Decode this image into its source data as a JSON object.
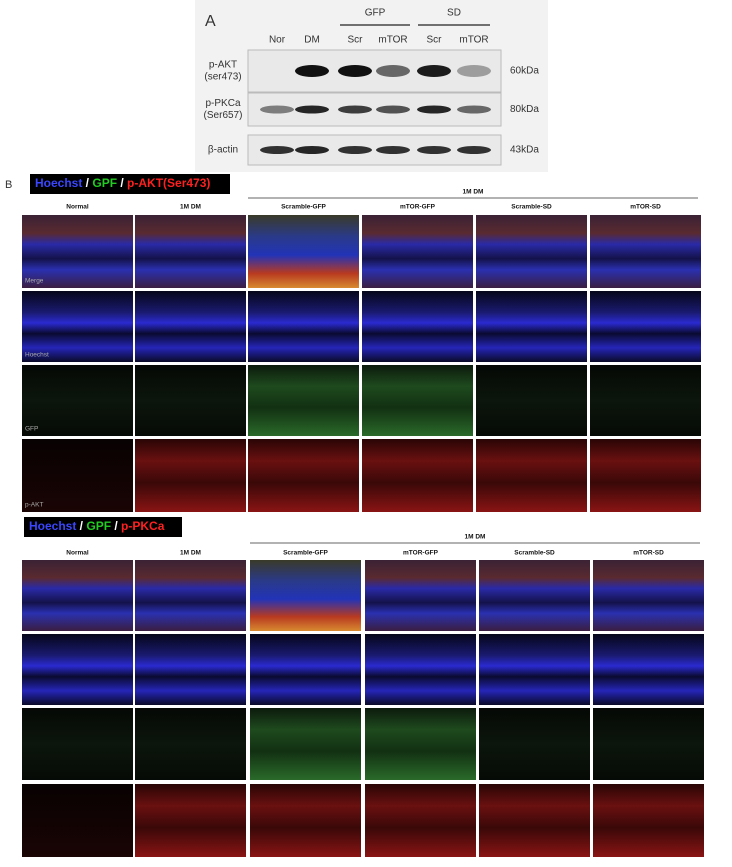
{
  "panel_a": {
    "label": "A",
    "groups": [
      "GFP",
      "SD"
    ],
    "lanes": [
      "Nor",
      "DM",
      "Scr",
      "mTOR",
      "Scr",
      "mTOR"
    ],
    "rows": [
      {
        "name": "p-AKT",
        "sub": "(ser473)",
        "size": "60kDa"
      },
      {
        "name": "p-PKCa",
        "sub": "(Ser657)",
        "size": "80kDa"
      },
      {
        "name": "β-actin",
        "size": "43kDa"
      }
    ]
  },
  "panel_b": {
    "label": "B",
    "separator": "/",
    "sections": [
      {
        "legend": [
          "Hoechst",
          "GPF",
          "p-AKT(Ser473)"
        ],
        "group": "1M DM",
        "columns": [
          "Normal",
          "1M DM",
          "Scramble-GFP",
          "mTOR-GFP",
          "Scramble-SD",
          "mTOR-SD"
        ],
        "channels": [
          "Merge",
          "Hoechst",
          "GFP",
          "p-AKT"
        ]
      },
      {
        "legend": [
          "Hoechst",
          "GPF",
          "p-PKCa"
        ],
        "group": "1M DM",
        "columns": [
          "Normal",
          "1M DM",
          "Scramble-GFP",
          "mTOR-GFP",
          "Scramble-SD",
          "mTOR-SD"
        ]
      }
    ]
  }
}
